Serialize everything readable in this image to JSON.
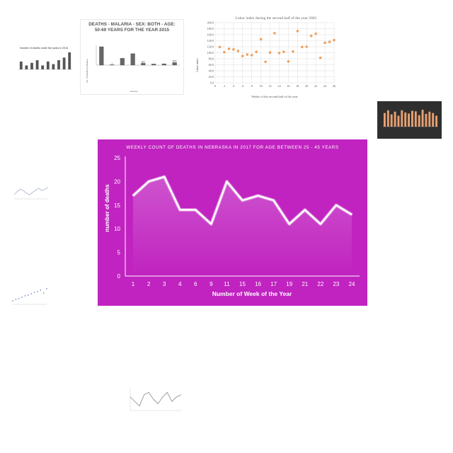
{
  "chart_data": [
    {
      "type": "line",
      "title": "WEEKLY COUNT OF DEATHS IN NEBRASKA IN 2017 FOR AGE BETWEEN 25 - 45 YEARS",
      "xlabel": "Number of Week of the Year",
      "ylabel": "number of deaths",
      "categories": [
        "1",
        "2",
        "3",
        "4",
        "6",
        "9",
        "11",
        "15",
        "16",
        "17",
        "19",
        "21",
        "22",
        "23",
        "24"
      ],
      "series": [
        {
          "values": [
            17,
            20,
            21,
            14,
            14,
            11,
            20,
            16,
            17,
            16,
            11,
            14,
            11,
            15,
            13
          ]
        }
      ],
      "ylim": [
        0,
        25
      ],
      "yticks": [
        "0",
        "5",
        "10",
        "15",
        "20",
        "25"
      ],
      "grid": false,
      "colors": {
        "background": "#c023c0",
        "line": "#ffffff"
      }
    },
    {
      "type": "bar",
      "title": "Number of deaths under five years in 2018",
      "values": [
        6,
        3,
        5,
        7,
        3,
        6,
        4,
        7,
        9,
        13
      ],
      "colors": {
        "bar": "#555555"
      }
    },
    {
      "type": "bar",
      "title": "DEATHS - MALARIA - SEX: BOTH - AGE: 50-69 YEARS FOR THE YEAR 2015",
      "xlabel": "Country",
      "ylabel": "No. of Deaths by Malaria",
      "values": [
        8000,
        1,
        3000,
        5000,
        805,
        500,
        600,
        1167
      ],
      "data_labels": [
        "",
        "1",
        "",
        "",
        "805",
        "",
        "",
        "1167"
      ],
      "colors": {
        "bar": "#666666"
      }
    },
    {
      "type": "scatter",
      "title": "Labor index during the second half of the year 2002",
      "xlabel": "Weeks of the second half of the year",
      "ylabel": "Labor index",
      "x": [
        1,
        2,
        3,
        4,
        5,
        6,
        7,
        8,
        9,
        10,
        11,
        12,
        13,
        14,
        15,
        16,
        17,
        18,
        19,
        20,
        21,
        22,
        23,
        24,
        25,
        26
      ],
      "y": [
        119,
        102,
        113,
        111,
        106,
        89,
        94,
        92,
        103,
        145,
        70,
        101,
        165,
        99,
        103,
        71,
        104,
        172,
        119,
        120,
        156,
        163,
        83,
        133,
        136,
        142
      ],
      "xlim": [
        0,
        26
      ],
      "ylim": [
        0,
        200
      ],
      "xticks": [
        "0",
        "2",
        "4",
        "6",
        "8",
        "10",
        "12",
        "14",
        "16",
        "18",
        "20",
        "22",
        "24",
        "26"
      ],
      "yticks": [
        "0.0",
        "20.0",
        "40.0",
        "60.0",
        "80.0",
        "100.0",
        "120.0",
        "140.0",
        "160.0",
        "180.0",
        "200.0"
      ],
      "grid": true,
      "colors": {
        "point": "#f0a060"
      }
    },
    {
      "type": "bar",
      "values": [
        50,
        60,
        45,
        55,
        40,
        60,
        52,
        48,
        58,
        56,
        42,
        62,
        47,
        55,
        50,
        40
      ],
      "colors": {
        "background": "#2f2f2f",
        "bar": "#e8a070"
      }
    },
    {
      "type": "line",
      "values": [
        50,
        54,
        57,
        55,
        52,
        50,
        53,
        56,
        58,
        55,
        57,
        59
      ],
      "colors": {
        "line": "#8899bb"
      }
    },
    {
      "type": "scatter",
      "values": [
        5,
        7,
        8,
        10,
        12,
        13,
        15,
        17,
        18,
        20,
        16,
        22
      ],
      "colors": {
        "point": "#4466aa"
      }
    },
    {
      "type": "line",
      "values": [
        14,
        12,
        10,
        15,
        16,
        13,
        11,
        14,
        16,
        12,
        14,
        15
      ],
      "colors": {
        "line": "#666666"
      }
    }
  ]
}
